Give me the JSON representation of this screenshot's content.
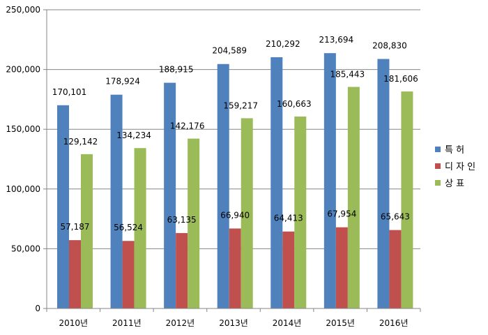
{
  "chart_data": {
    "type": "bar",
    "categories": [
      "2010년",
      "2011년",
      "2012년",
      "2013년",
      "2014년",
      "2015년",
      "2016년"
    ],
    "series": [
      {
        "name": "특 허",
        "color": "#4F81BD",
        "values": [
          170101,
          178924,
          188915,
          204589,
          210292,
          213694,
          208830
        ]
      },
      {
        "name": "디 자 인",
        "color": "#C0504D",
        "values": [
          57187,
          56524,
          63135,
          66940,
          64413,
          67954,
          65643
        ]
      },
      {
        "name": "상 표",
        "color": "#9BBB59",
        "values": [
          129142,
          134234,
          142176,
          159217,
          160663,
          185443,
          181606
        ]
      }
    ],
    "data_labels": [
      [
        "170,101",
        "178,924",
        "188,915",
        "204,589",
        "210,292",
        "213,694",
        "208,830"
      ],
      [
        "57,187",
        "56,524",
        "63,135",
        "66,940",
        "64,413",
        "67,954",
        "65,643"
      ],
      [
        "129,142",
        "134,234",
        "142,176",
        "159,217",
        "160,663",
        "185,443",
        "181,606"
      ]
    ],
    "yticks": [
      0,
      50000,
      100000,
      150000,
      200000,
      250000
    ],
    "ytick_labels": [
      "0",
      "50,000",
      "100,000",
      "150,000",
      "200,000",
      "250,000"
    ],
    "ylim": [
      0,
      250000
    ],
    "grid": true,
    "legend_position": "right"
  }
}
